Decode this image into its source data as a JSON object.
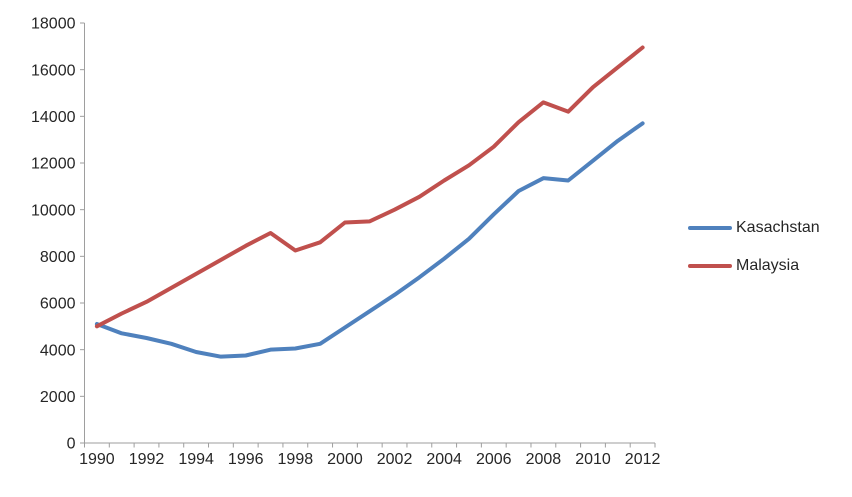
{
  "chart_data": {
    "type": "line",
    "x": [
      1990,
      1991,
      1992,
      1993,
      1994,
      1995,
      1996,
      1997,
      1998,
      1999,
      2000,
      2001,
      2002,
      2003,
      2004,
      2005,
      2006,
      2007,
      2008,
      2009,
      2010,
      2011,
      2012
    ],
    "x_labeled_ticks": [
      1990,
      1992,
      1994,
      1996,
      1998,
      2000,
      2002,
      2004,
      2006,
      2008,
      2010,
      2012
    ],
    "series": [
      {
        "name": "Kasachstan",
        "color": "#4F81BD",
        "values": [
          5100,
          4700,
          4500,
          4250,
          3900,
          3700,
          3750,
          4000,
          4050,
          4250,
          4950,
          5650,
          6350,
          7100,
          7900,
          8750,
          9800,
          10800,
          11350,
          11250,
          12100,
          12950,
          13700
        ]
      },
      {
        "name": "Malaysia",
        "color": "#C0504D",
        "values": [
          5000,
          5550,
          6050,
          6650,
          7250,
          7850,
          8450,
          9000,
          8250,
          8600,
          9450,
          9500,
          10000,
          10550,
          11250,
          11900,
          12700,
          13750,
          14600,
          14200,
          15250,
          16100,
          16950
        ]
      }
    ],
    "title": "",
    "xlabel": "",
    "ylabel": "",
    "ylim": [
      0,
      18000
    ],
    "y_tick_step": 2000,
    "y_tick_labels": [
      "0",
      "2000",
      "4000",
      "6000",
      "8000",
      "10000",
      "12000",
      "14000",
      "16000",
      "18000"
    ],
    "grid": false,
    "legend_position": "right",
    "axis_color": "#9e9e9e",
    "label_color": "#262626",
    "line_width": 4
  }
}
